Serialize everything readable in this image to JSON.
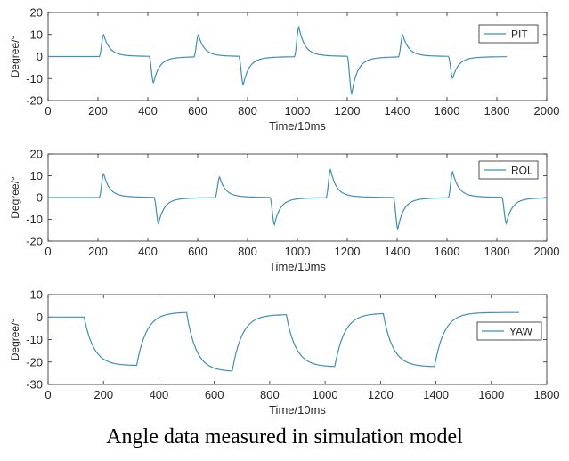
{
  "caption": "Angle data measured in simulation model",
  "colors": {
    "series": "#3d8fb7",
    "axis": "#262626",
    "legend_border": "#262626"
  },
  "chart_data": [
    {
      "type": "line",
      "ylabel": "Degree/°",
      "xlabel": "Time/10ms",
      "xlim": [
        0,
        2000
      ],
      "ylim": [
        -20,
        20
      ],
      "xticks": [
        0,
        200,
        400,
        600,
        800,
        1000,
        1200,
        1400,
        1600,
        1800,
        2000
      ],
      "yticks": [
        -20,
        -10,
        0,
        10,
        20
      ],
      "grid": false,
      "legend_position": "top-right",
      "series": [
        {
          "name": "PIT",
          "x_end": 1840,
          "events": [
            {
              "t": 205,
              "peak": 10
            },
            {
              "t": 405,
              "peak": -12
            },
            {
              "t": 585,
              "peak": 10
            },
            {
              "t": 765,
              "peak": -13
            },
            {
              "t": 988,
              "peak": 13.5
            },
            {
              "t": 1200,
              "peak": -17
            },
            {
              "t": 1405,
              "peak": 10
            },
            {
              "t": 1605,
              "peak": -10
            }
          ]
        }
      ]
    },
    {
      "type": "line",
      "ylabel": "Degree/°",
      "xlabel": "Time/10ms",
      "xlim": [
        0,
        2000
      ],
      "ylim": [
        -20,
        20
      ],
      "xticks": [
        0,
        200,
        400,
        600,
        800,
        1000,
        1200,
        1400,
        1600,
        1800,
        2000
      ],
      "yticks": [
        -20,
        -10,
        0,
        10,
        20
      ],
      "grid": false,
      "legend_position": "top-right",
      "series": [
        {
          "name": "ROL",
          "x_end": 2000,
          "events": [
            {
              "t": 205,
              "peak": 11
            },
            {
              "t": 425,
              "peak": -12
            },
            {
              "t": 670,
              "peak": 9.5
            },
            {
              "t": 890,
              "peak": -12.5
            },
            {
              "t": 1115,
              "peak": 13
            },
            {
              "t": 1385,
              "peak": -14.5
            },
            {
              "t": 1605,
              "peak": 12
            },
            {
              "t": 1820,
              "peak": -12
            }
          ]
        }
      ]
    },
    {
      "type": "line",
      "ylabel": "Degree/°",
      "xlabel": "Time/10ms",
      "xlim": [
        0,
        1800
      ],
      "ylim": [
        -30,
        10
      ],
      "xticks": [
        0,
        200,
        400,
        600,
        800,
        1000,
        1200,
        1400,
        1600,
        1800
      ],
      "yticks": [
        -30,
        -20,
        -10,
        0,
        10
      ],
      "grid": false,
      "legend_position": "right",
      "series": [
        {
          "name": "YAW",
          "x_end": 1700,
          "segments": [
            {
              "t0": 0,
              "t1": 130,
              "start": 0,
              "end": 0
            },
            {
              "t0": 130,
              "t1": 320,
              "start": 0,
              "end": -21.5
            },
            {
              "t0": 320,
              "t1": 500,
              "start": -21.5,
              "end": 2
            },
            {
              "t0": 500,
              "t1": 665,
              "start": 2,
              "end": -24
            },
            {
              "t0": 665,
              "t1": 860,
              "start": -24,
              "end": 1
            },
            {
              "t0": 860,
              "t1": 1035,
              "start": 1,
              "end": -22
            },
            {
              "t0": 1035,
              "t1": 1210,
              "start": -22,
              "end": 1.5
            },
            {
              "t0": 1210,
              "t1": 1395,
              "start": 1.5,
              "end": -22
            },
            {
              "t0": 1395,
              "t1": 1700,
              "start": -22,
              "end": 2
            }
          ]
        }
      ]
    }
  ]
}
